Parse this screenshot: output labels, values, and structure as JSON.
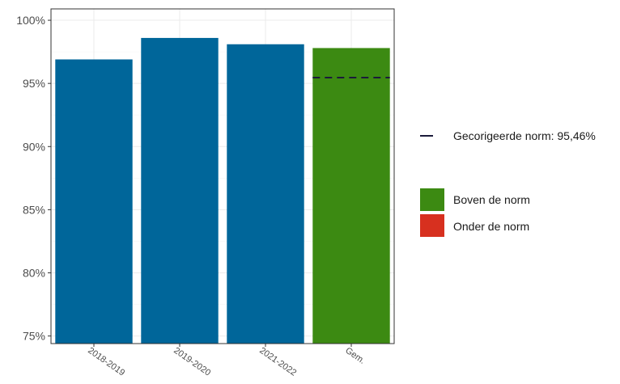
{
  "chart_data": {
    "type": "bar",
    "categories": [
      "2018-2019",
      "2019-2020",
      "2021-2022",
      "Gem."
    ],
    "values": [
      96.9,
      98.6,
      98.1,
      97.8
    ],
    "value_unit": "%",
    "ylim": [
      74.4,
      100.9
    ],
    "yticks": [
      75,
      80,
      85,
      90,
      95,
      100
    ],
    "ytick_labels": [
      "75%",
      "80%",
      "85%",
      "90%",
      "95%",
      "100%"
    ],
    "grid": true,
    "bar_colors": [
      "#00669a",
      "#00669a",
      "#00669a",
      "#3c8a12"
    ],
    "reference_line": {
      "value": 95.46,
      "category": "Gem.",
      "label": "Gecorigeerde norm: 95,46%",
      "color": "#1b1b3a",
      "style": "dashed"
    },
    "legend": {
      "placement": "right",
      "items": [
        {
          "label": "Boven de norm",
          "color": "#3c8a12"
        },
        {
          "label": "Onder de norm",
          "color": "#d7301f"
        }
      ]
    }
  }
}
